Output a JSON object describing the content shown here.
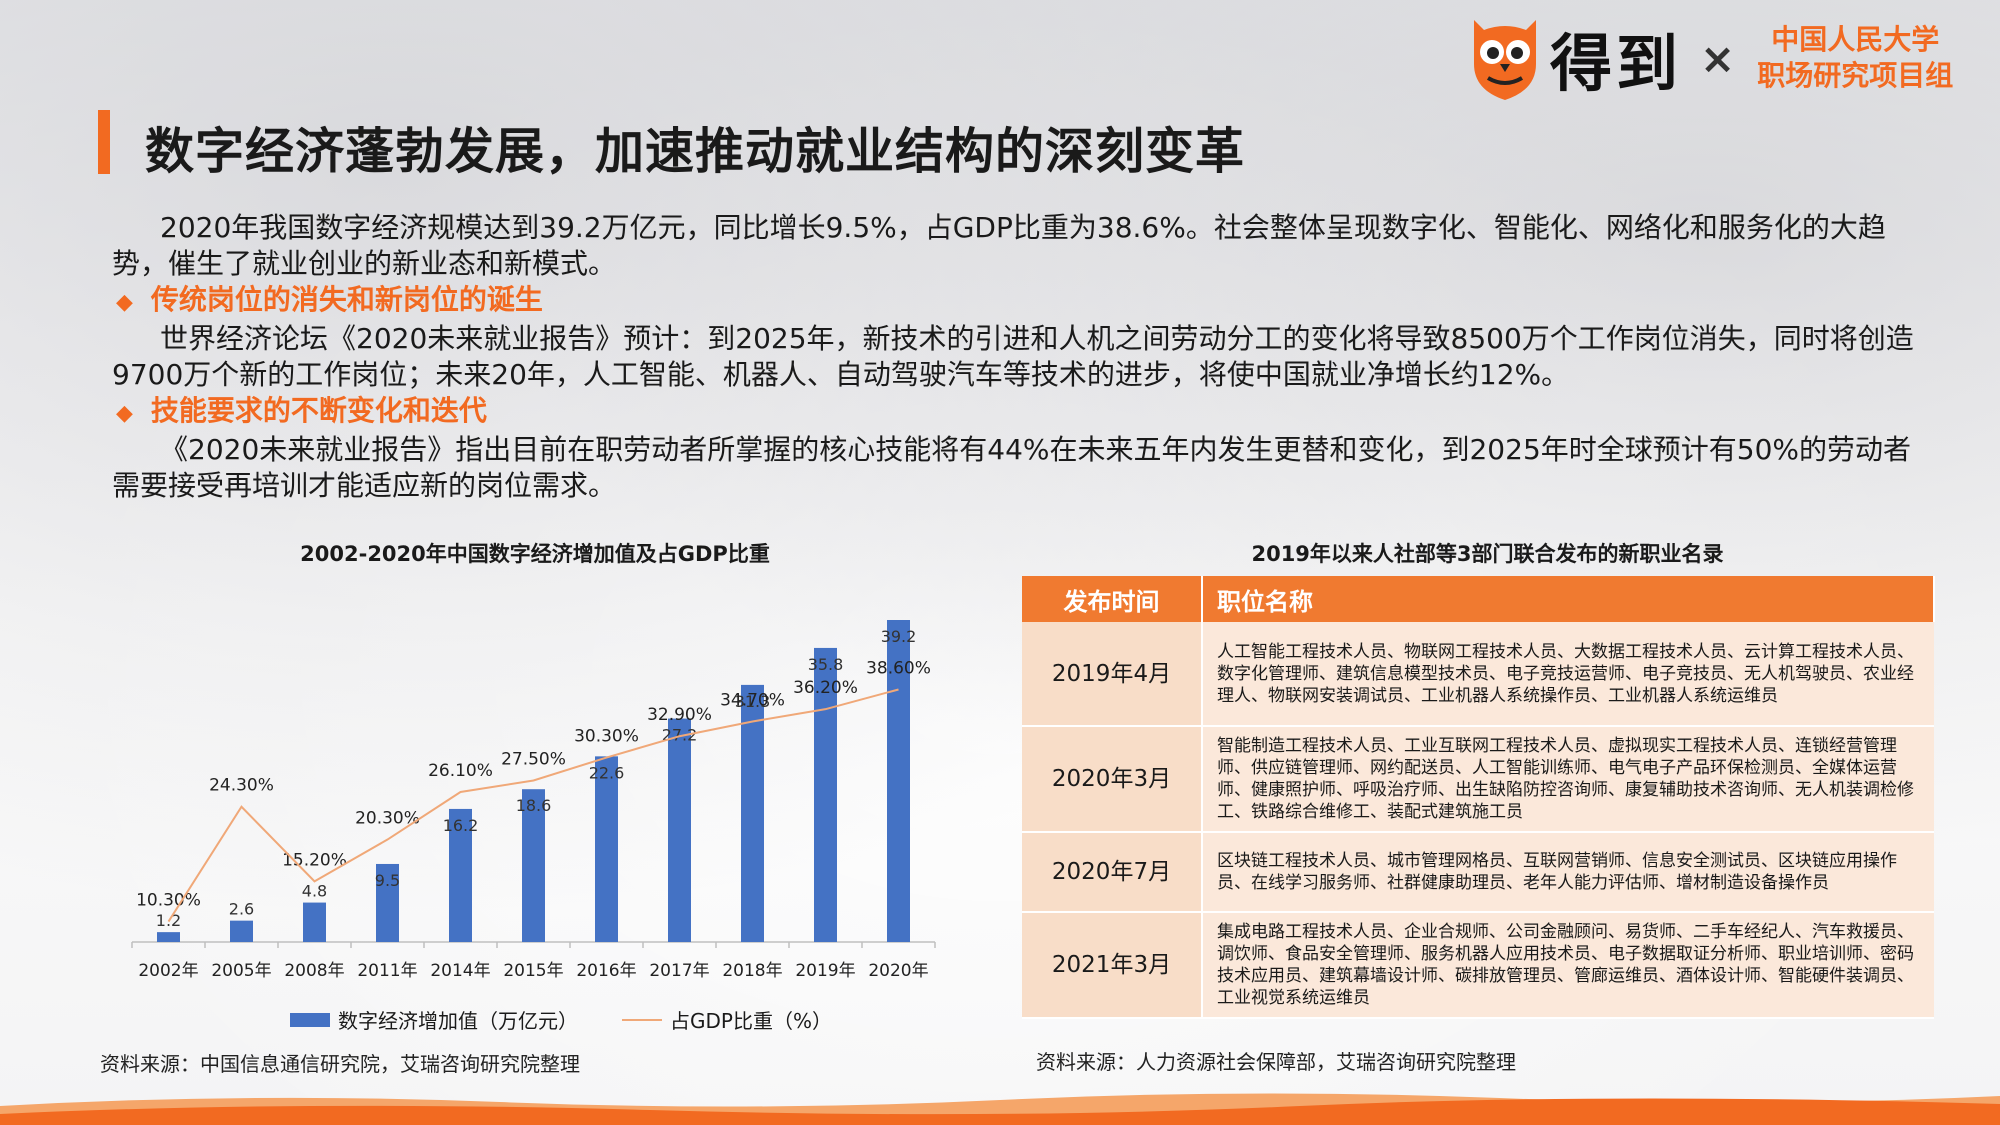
{
  "header": {
    "brand": "得到",
    "times": "×",
    "partner_line1": "中国人民大学",
    "partner_line2": "职场研究项目组",
    "title": "数字经济蓬勃发展，加速推动就业结构的深刻变革"
  },
  "body": {
    "para1": "2020年我国数字经济规模达到39.2万亿元，同比增长9.5%，占GDP比重为38.6%。社会整体呈现数字化、智能化、网络化和服务化的大趋势，催生了就业创业的新业态和新模式。",
    "bullet1": "传统岗位的消失和新岗位的诞生",
    "para2": "世界经济论坛《2020未来就业报告》预计：到2025年，新技术的引进和人机之间劳动分工的变化将导致8500万个工作岗位消失，同时将创造9700万个新的工作岗位；未来20年，人工智能、机器人、自动驾驶汽车等技术的进步，将使中国就业净增长约12%。",
    "bullet2": "技能要求的不断变化和迭代",
    "para3": "《2020未来就业报告》指出目前在职劳动者所掌握的核心技能将有44%在未来五年内发生更替和变化，到2025年时全球预计有50%的劳动者需要接受再培训才能适应新的岗位需求。",
    "bullet_icon": "diamond-icon"
  },
  "chart_data": {
    "type": "bar",
    "title": "2002-2020年中国数字经济增加值及占GDP比重",
    "categories": [
      "2002年",
      "2005年",
      "2008年",
      "2011年",
      "2014年",
      "2015年",
      "2016年",
      "2017年",
      "2018年",
      "2019年",
      "2020年"
    ],
    "series": [
      {
        "name": "数字经济增加值（万亿元）",
        "type": "bar",
        "color": "#4472c4",
        "values": [
          1.2,
          2.6,
          4.8,
          9.5,
          16.2,
          18.6,
          22.6,
          27.2,
          31.3,
          35.8,
          39.2
        ],
        "labels": [
          "1.2",
          "2.6",
          "4.8",
          "9.5",
          "16.2",
          "18.6",
          "22.6",
          "27.2",
          "31.3",
          "35.8",
          "39.2"
        ]
      },
      {
        "name": "占GDP比重（%）",
        "type": "line",
        "color": "#f0a878",
        "values": [
          10.3,
          24.3,
          15.2,
          20.3,
          26.1,
          27.5,
          30.3,
          32.9,
          34.7,
          36.2,
          38.6
        ],
        "labels": [
          "10.30%",
          "24.30%",
          "15.20%",
          "20.30%",
          "26.10%",
          "27.50%",
          "30.30%",
          "32.90%",
          "34.70%",
          "36.20%",
          "38.60%"
        ]
      }
    ],
    "grid": false,
    "legend": "bottom"
  },
  "chart_source": "资料来源：中国信息通信研究院，艾瑞咨询研究院整理",
  "table": {
    "title": "2019年以来人社部等3部门联合发布的新职业名录",
    "headers": [
      "发布时间",
      "职位名称"
    ],
    "rows": [
      {
        "date": "2019年4月",
        "roles": "人工智能工程技术人员、物联网工程技术人员、大数据工程技术人员、云计算工程技术人员、数字化管理师、建筑信息模型技术员、电子竞技运营师、电子竞技员、无人机驾驶员、农业经理人、物联网安装调试员、工业机器人系统操作员、工业机器人系统运维员"
      },
      {
        "date": "2020年3月",
        "roles": "智能制造工程技术人员、工业互联网工程技术人员、虚拟现实工程技术人员、连锁经营管理师、供应链管理师、网约配送员、人工智能训练师、电气电子产品环保检测员、全媒体运营师、健康照护师、呼吸治疗师、出生缺陷防控咨询师、康复辅助技术咨询师、无人机装调检修工、铁路综合维修工、装配式建筑施工员"
      },
      {
        "date": "2020年7月",
        "roles": "区块链工程技术人员、城市管理网格员、互联网营销师、信息安全测试员、区块链应用操作员、在线学习服务师、社群健康助理员、老年人能力评估师、增材制造设备操作员"
      },
      {
        "date": "2021年3月",
        "roles": "集成电路工程技术人员、企业合规师、公司金融顾问、易货师、二手车经纪人、汽车救援员、调饮师、食品安全管理师、服务机器人应用技术员、电子数据取证分析师、职业培训师、密码技术应用员、建筑幕墙设计师、碳排放管理员、管廊运维员、酒体设计师、智能硬件装调员、工业视觉系统运维员"
      }
    ]
  },
  "table_source": "资料来源：人力资源社会保障部，艾瑞咨询研究院整理",
  "colors": {
    "accent": "#f26a21",
    "bar": "#4472c4",
    "line": "#f0a878",
    "table_header": "#f07a30",
    "table_date": "#f8ddc8",
    "table_roles": "#fbe8da"
  }
}
